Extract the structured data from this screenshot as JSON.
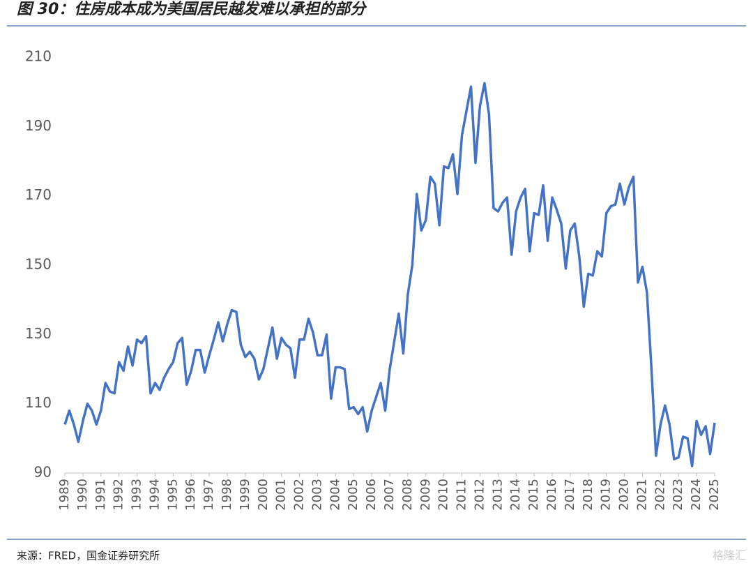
{
  "chart_data": {
    "type": "line",
    "title": "图 30：住房成本成为美国居民越发难以承担的部分",
    "source": "来源：FRED，国金证券研究所",
    "watermark": "格隆汇",
    "color": "#4472c4",
    "ylim": [
      90,
      210
    ],
    "yticks": [
      90,
      110,
      130,
      150,
      170,
      190,
      210
    ],
    "grid": false,
    "categories": [
      "1989",
      null,
      null,
      null,
      "1990",
      null,
      null,
      null,
      "1991",
      null,
      null,
      null,
      "1992",
      null,
      null,
      null,
      "1993",
      null,
      null,
      null,
      "1994",
      null,
      null,
      null,
      "1995",
      null,
      null,
      null,
      "1996",
      null,
      null,
      null,
      "1997",
      null,
      null,
      null,
      "1998",
      null,
      null,
      null,
      "1999",
      null,
      null,
      null,
      "2000",
      null,
      null,
      null,
      "2001",
      null,
      null,
      null,
      "2002",
      null,
      null,
      null,
      "2003",
      null,
      null,
      null,
      "2004",
      null,
      null,
      null,
      "2005",
      null,
      null,
      null,
      "2006",
      null,
      null,
      null,
      "2007",
      null,
      null,
      null,
      "2008",
      null,
      null,
      null,
      "2009",
      null,
      null,
      null,
      "2010",
      null,
      null,
      null,
      "2011",
      null,
      null,
      null,
      "2012",
      null,
      null,
      null,
      "2013",
      null,
      null,
      null,
      "2014",
      null,
      null,
      null,
      "2015",
      null,
      null,
      null,
      "2016",
      null,
      null,
      null,
      "2017",
      null,
      null,
      null,
      "2018",
      null,
      null,
      null,
      "2019",
      null,
      null,
      null,
      "2020",
      null,
      null,
      null,
      "2021",
      null,
      null,
      null,
      "2022",
      null,
      null,
      null,
      "2023",
      null,
      null,
      null,
      "2024",
      null,
      null,
      null,
      "2025"
    ],
    "values": [
      104,
      108,
      104,
      99,
      105,
      110,
      108,
      104,
      108,
      116,
      113.5,
      113,
      122,
      119.5,
      126.5,
      121,
      128.5,
      127.5,
      129.5,
      113,
      116,
      114,
      117.5,
      120,
      122,
      127.5,
      129,
      115.5,
      119.5,
      125.5,
      125.5,
      119,
      124,
      128.5,
      133.5,
      128,
      133,
      137,
      136.5,
      127,
      123.5,
      125,
      123,
      117,
      120,
      126,
      132,
      123,
      129,
      127,
      126,
      117.5,
      128.5,
      128.5,
      134.5,
      130.5,
      124,
      124,
      130,
      111.5,
      120.5,
      120.5,
      120,
      108.5,
      109,
      107,
      109,
      102,
      108,
      112,
      116,
      108,
      120,
      128,
      136,
      124.5,
      141.5,
      150,
      170.5,
      160,
      163,
      175.5,
      173.5,
      161.5,
      178.5,
      178,
      182,
      170.5,
      187.5,
      194.5,
      201.5,
      179.5,
      196,
      202.5,
      193.5,
      166.5,
      165.5,
      168,
      169.5,
      153,
      165.5,
      169.5,
      172,
      154,
      165,
      164.5,
      173,
      157,
      169.5,
      166,
      162,
      149,
      160,
      162,
      152.5,
      138,
      147.5,
      147,
      154,
      152.5,
      165,
      167,
      167.5,
      173.5,
      167.5,
      172.5,
      175.5,
      145,
      149.5,
      142,
      120,
      95,
      104,
      109.5,
      104,
      94,
      94.5,
      100.5,
      100,
      92,
      105,
      101,
      103.5,
      95.5,
      104.5
    ]
  }
}
